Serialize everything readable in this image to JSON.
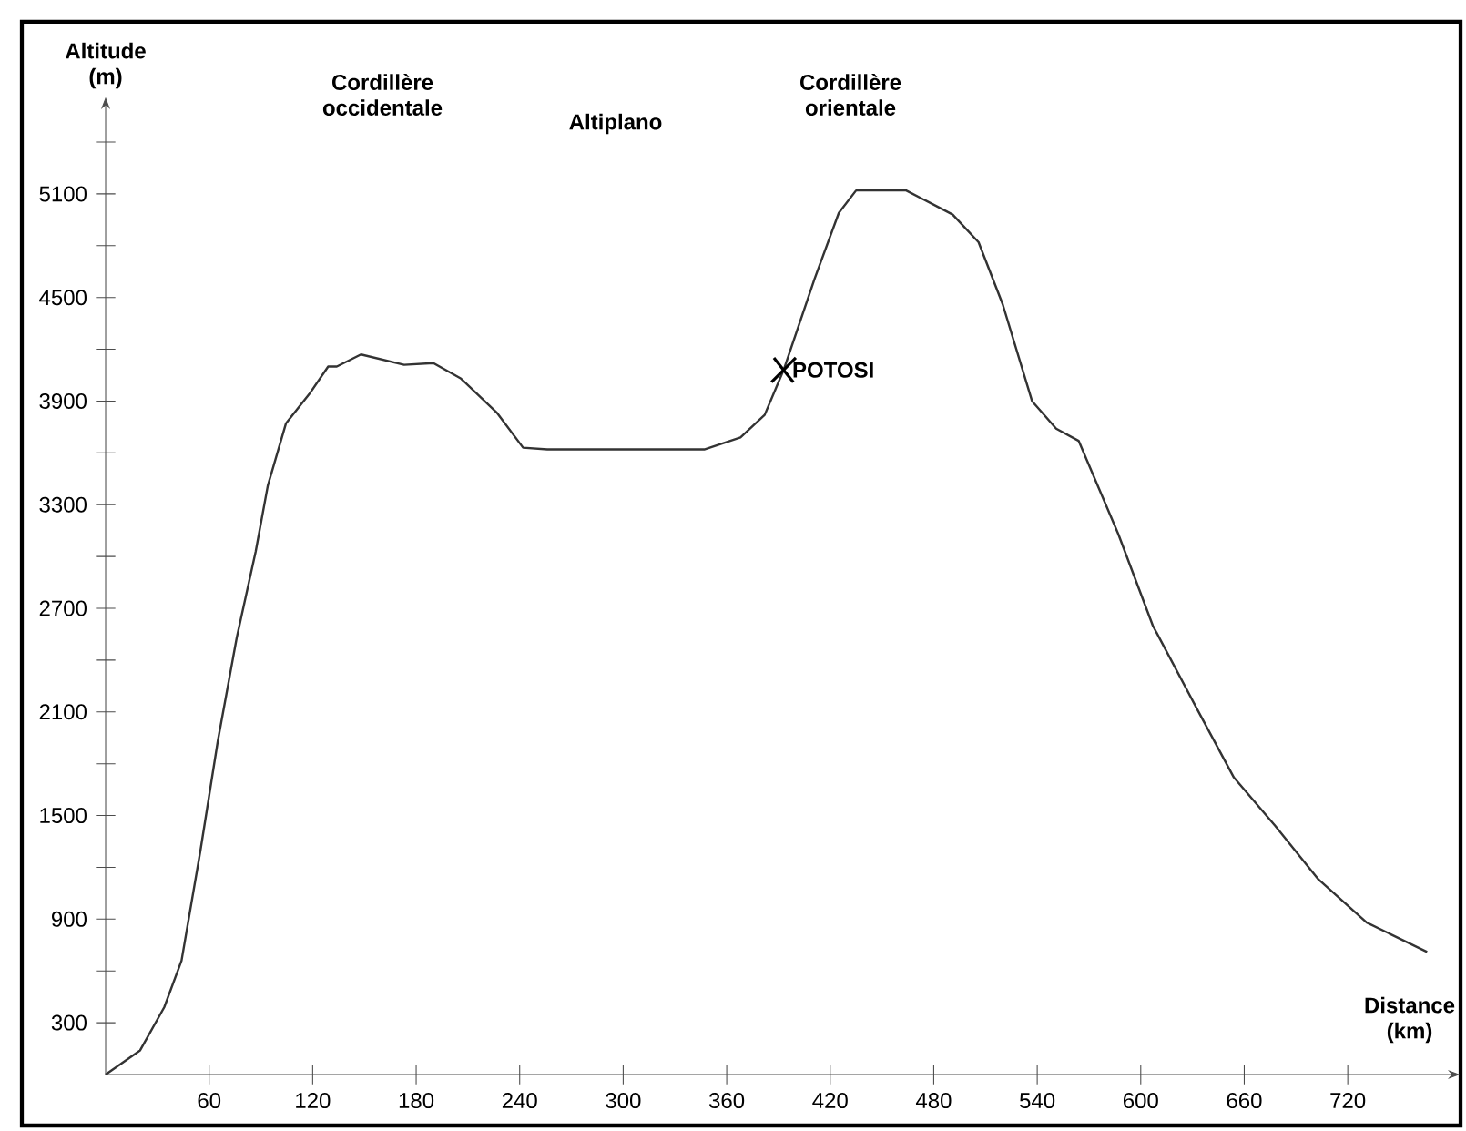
{
  "chart_data": {
    "type": "line",
    "xlabel": "Distance (km)",
    "ylabel": "Altitude (m)",
    "x": [
      0,
      20,
      34,
      44,
      55,
      65,
      76,
      87,
      94,
      104.5,
      118,
      129,
      134,
      148,
      173,
      190,
      206,
      227,
      242,
      256,
      347,
      368,
      382,
      393,
      411,
      425,
      435,
      464,
      491,
      506,
      520,
      537,
      551,
      564,
      587,
      607,
      633,
      654,
      678,
      703,
      731,
      766
    ],
    "series": [
      {
        "color": "#333333",
        "values": [
          0,
          140,
          390,
          660,
          1300,
          1930,
          2530,
          3030,
          3410,
          3770,
          3940,
          4100,
          4100,
          4170,
          4110,
          4120,
          4030,
          3830,
          3630,
          3620,
          3620,
          3690,
          3820,
          4080,
          4610,
          4990,
          5120,
          5120,
          4980,
          4820,
          4460,
          3900,
          3740,
          3670,
          3130,
          2600,
          2110,
          1720,
          1440,
          1130,
          880,
          710
        ]
      }
    ],
    "xlim": [
      0,
      778
    ],
    "ylim": [
      0,
      5590
    ],
    "xticks": [
      60,
      120,
      180,
      240,
      300,
      360,
      420,
      480,
      540,
      600,
      660,
      720
    ],
    "yticks": [
      300,
      {
        "value": 600,
        "label": null
      },
      900,
      {
        "value": 1200,
        "label": null
      },
      1500,
      {
        "value": 1800,
        "label": null
      },
      2100,
      {
        "value": 2400,
        "label": null
      },
      2700,
      {
        "value": 3000,
        "label": null
      },
      3300,
      {
        "value": 3600,
        "label": null
      },
      3900,
      {
        "value": 4200,
        "label": null
      },
      4500,
      {
        "value": 4800,
        "label": null
      },
      5100,
      {
        "value": 5400,
        "label": null
      }
    ],
    "annotations": [
      "Cordillère occidentale",
      "Altiplano",
      "Cordillère orientale",
      {
        "text": "POTOSI",
        "x": 393,
        "y": 4080
      }
    ],
    "grid": false,
    "marker": "none",
    "line_style": "solid"
  }
}
